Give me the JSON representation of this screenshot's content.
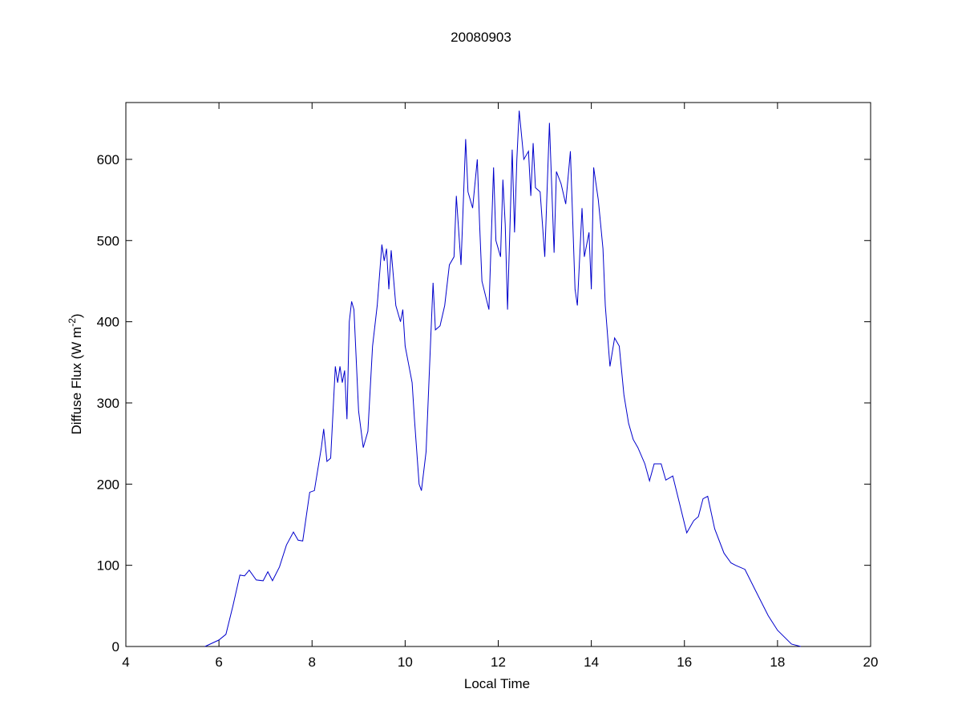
{
  "chart_data": {
    "type": "line",
    "title": "20080903",
    "xlabel": "Local Time",
    "ylabel": [
      "Diffuse Flux (W m",
      "-2",
      ")"
    ],
    "xlim": [
      4,
      20
    ],
    "xticks": [
      4,
      6,
      8,
      10,
      12,
      14,
      16,
      18,
      20
    ],
    "ylim": [
      0,
      670
    ],
    "yticks": [
      0,
      100,
      200,
      300,
      400,
      500,
      600
    ],
    "series": [
      {
        "color": "#0000cc",
        "x": [
          5.7,
          6.0,
          6.15,
          6.3,
          6.45,
          6.55,
          6.65,
          6.8,
          6.95,
          7.05,
          7.15,
          7.3,
          7.45,
          7.6,
          7.7,
          7.8,
          7.95,
          8.05,
          8.2,
          8.25,
          8.32,
          8.4,
          8.5,
          8.55,
          8.6,
          8.65,
          8.7,
          8.75,
          8.8,
          8.85,
          8.9,
          9.0,
          9.1,
          9.2,
          9.3,
          9.4,
          9.5,
          9.55,
          9.6,
          9.65,
          9.7,
          9.8,
          9.9,
          9.95,
          10.0,
          10.1,
          10.15,
          10.2,
          10.3,
          10.35,
          10.45,
          10.55,
          10.6,
          10.65,
          10.75,
          10.85,
          10.95,
          11.05,
          11.1,
          11.2,
          11.3,
          11.35,
          11.45,
          11.55,
          11.6,
          11.65,
          11.8,
          11.9,
          11.95,
          12.05,
          12.1,
          12.15,
          12.2,
          12.3,
          12.35,
          12.4,
          12.45,
          12.55,
          12.65,
          12.7,
          12.75,
          12.8,
          12.9,
          13.0,
          13.1,
          13.2,
          13.25,
          13.35,
          13.45,
          13.55,
          13.65,
          13.7,
          13.8,
          13.85,
          13.95,
          14.0,
          14.05,
          14.15,
          14.2,
          14.25,
          14.3,
          14.4,
          14.5,
          14.6,
          14.7,
          14.8,
          14.9,
          15.0,
          15.15,
          15.25,
          15.35,
          15.5,
          15.6,
          15.75,
          15.9,
          16.05,
          16.2,
          16.3,
          16.4,
          16.5,
          16.65,
          16.85,
          17.0,
          17.1,
          17.3,
          17.5,
          17.8,
          18.0,
          18.3,
          18.5
        ],
        "values": [
          0,
          8,
          15,
          50,
          88,
          87,
          94,
          82,
          81,
          92,
          81,
          98,
          125,
          141,
          131,
          130,
          190,
          192,
          245,
          268,
          228,
          232,
          345,
          325,
          345,
          325,
          340,
          280,
          400,
          425,
          415,
          290,
          245,
          265,
          370,
          420,
          495,
          475,
          490,
          440,
          488,
          420,
          400,
          415,
          370,
          340,
          325,
          280,
          200,
          192,
          240,
          380,
          448,
          390,
          395,
          420,
          470,
          480,
          555,
          470,
          625,
          560,
          540,
          600,
          520,
          450,
          415,
          590,
          500,
          480,
          575,
          520,
          415,
          612,
          510,
          600,
          660,
          600,
          610,
          555,
          620,
          565,
          560,
          480,
          645,
          485,
          585,
          570,
          545,
          610,
          440,
          420,
          540,
          480,
          510,
          440,
          590,
          550,
          520,
          490,
          420,
          345,
          380,
          370,
          310,
          275,
          255,
          245,
          225,
          204,
          225,
          225,
          205,
          210,
          175,
          140,
          155,
          160,
          182,
          185,
          145,
          115,
          103,
          100,
          95,
          72,
          38,
          20,
          3,
          0
        ]
      }
    ]
  }
}
